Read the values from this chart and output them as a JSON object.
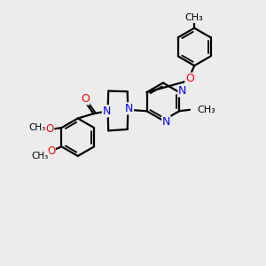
{
  "bg_color": "#ececec",
  "bond_color": "#000000",
  "bond_width": 1.6,
  "atom_colors": {
    "N": "#0000ff",
    "O": "#ff0000",
    "C": "#000000"
  },
  "figsize": [
    3.0,
    3.0
  ],
  "dpi": 100,
  "xlim": [
    0,
    10
  ],
  "ylim": [
    0,
    10
  ]
}
